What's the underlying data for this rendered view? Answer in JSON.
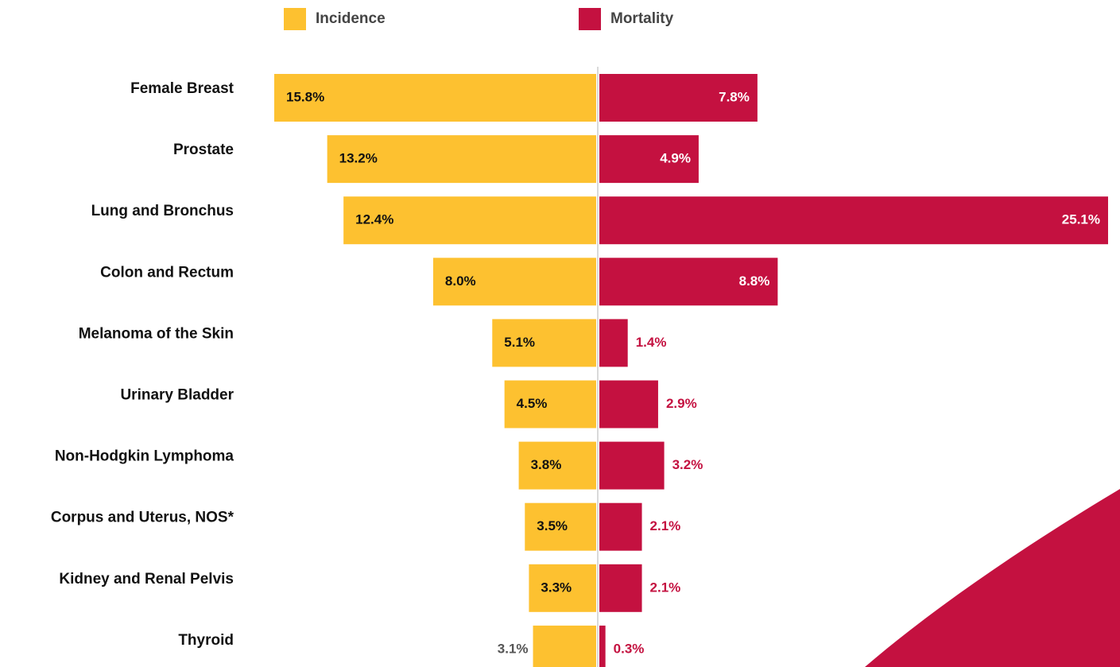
{
  "chart_data": {
    "type": "bar",
    "orientation": "horizontal-diverging",
    "categories": [
      "Female Breast",
      "Prostate",
      "Lung and Bronchus",
      "Colon and Rectum",
      "Melanoma of the Skin",
      "Urinary Bladder",
      "Non-Hodgkin Lymphoma",
      "Corpus and Uterus, NOS*",
      "Kidney and Renal Pelvis",
      "Thyroid"
    ],
    "series": [
      {
        "name": "Incidence",
        "color": "#FDC130",
        "values": [
          15.8,
          13.2,
          12.4,
          8.0,
          5.1,
          4.5,
          3.8,
          3.5,
          3.3,
          3.1
        ],
        "labels": [
          "15.8%",
          "13.2%",
          "12.4%",
          "8.0%",
          "5.1%",
          "4.5%",
          "3.8%",
          "3.5%",
          "3.3%",
          "3.1%"
        ]
      },
      {
        "name": "Mortality",
        "color": "#C41140",
        "values": [
          7.8,
          4.9,
          25.1,
          8.8,
          1.4,
          2.9,
          3.2,
          2.1,
          2.1,
          0.3
        ],
        "labels": [
          "7.8%",
          "4.9%",
          "25.1%",
          "8.8%",
          "1.4%",
          "2.9%",
          "3.2%",
          "2.1%",
          "2.1%",
          "0.3%"
        ]
      }
    ],
    "legend_position": "top",
    "grid": false
  },
  "colors": {
    "incidence": "#FDC130",
    "mortality": "#C41140",
    "axis": "#d9d9d9",
    "decoration": "#C41140"
  }
}
